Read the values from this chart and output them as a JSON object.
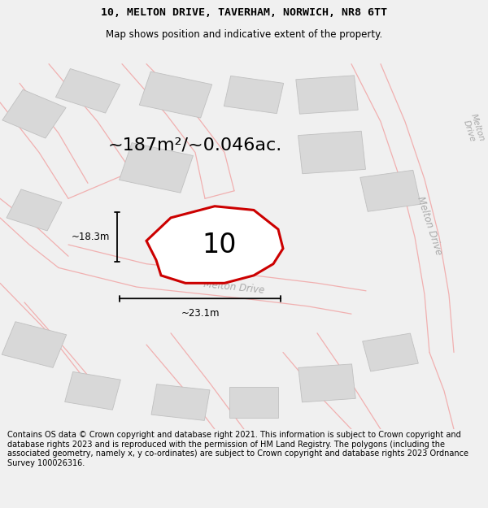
{
  "title": "10, MELTON DRIVE, TAVERHAM, NORWICH, NR8 6TT",
  "subtitle": "Map shows position and indicative extent of the property.",
  "area_text": "~187m²/~0.046ac.",
  "label_10": "10",
  "dim_height": "~18.3m",
  "dim_width": "~23.1m",
  "footer": "Contains OS data © Crown copyright and database right 2021. This information is subject to Crown copyright and database rights 2023 and is reproduced with the permission of HM Land Registry. The polygons (including the associated geometry, namely x, y co-ordinates) are subject to Crown copyright and database rights 2023 Ordnance Survey 100026316.",
  "bg_color": "#f0f0f0",
  "map_bg": "#f8f8f8",
  "road_color": "#f0b0b0",
  "building_color": "#d8d8d8",
  "building_edge": "#c0c0c0",
  "highlight_color": "#cc0000",
  "road_label_color": "#aaaaaa",
  "title_fontsize": 9.5,
  "subtitle_fontsize": 8.5,
  "area_fontsize": 16,
  "label_fontsize": 24,
  "dim_fontsize": 8.5,
  "footer_fontsize": 7.0,
  "road_label_fontsize": 8.5,
  "road_label_right": "Melton Drive",
  "road_label_diag": "Melton Drive",
  "road_label_center": "Melton Drive"
}
